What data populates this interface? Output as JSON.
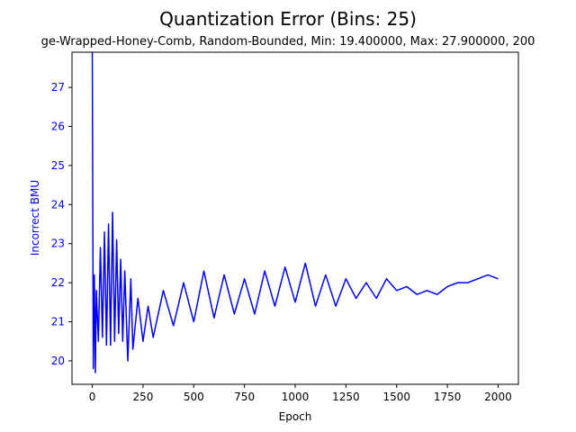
{
  "chart_data": {
    "type": "line",
    "title": "Quantization Error (Bins: 25)",
    "subtitle": "ge-Wrapped-Honey-Comb, Random-Bounded, Min: 19.400000, Max: 27.900000, 200",
    "xlabel": "Epoch",
    "ylabel": "Incorrect BMU",
    "xlim": [
      -100,
      2100
    ],
    "ylim": [
      19.4,
      27.9
    ],
    "xticks": [
      0,
      250,
      500,
      750,
      1000,
      1250,
      1500,
      1750,
      2000
    ],
    "yticks": [
      20,
      21,
      22,
      23,
      24,
      25,
      26,
      27
    ],
    "grid": false,
    "legend": "none",
    "series_color": "#0000ff",
    "ylabel_color": "#0000ff",
    "series": [
      {
        "x": [
          0,
          5,
          10,
          15,
          20,
          30,
          40,
          50,
          60,
          70,
          80,
          90,
          100,
          110,
          120,
          130,
          140,
          150,
          160,
          175,
          190,
          200,
          225,
          250,
          275,
          300,
          350,
          400,
          450,
          500,
          550,
          600,
          650,
          700,
          750,
          800,
          850,
          900,
          950,
          1000,
          1050,
          1100,
          1150,
          1200,
          1250,
          1300,
          1350,
          1400,
          1450,
          1500,
          1550,
          1600,
          1650,
          1700,
          1750,
          1800,
          1850,
          1900,
          1950,
          2000
        ],
        "y": [
          27.9,
          19.8,
          22.2,
          19.7,
          21.8,
          20.5,
          22.9,
          20.6,
          23.3,
          20.4,
          23.5,
          20.4,
          23.8,
          20.5,
          23.1,
          20.7,
          22.6,
          20.5,
          22.3,
          20.0,
          22.1,
          20.3,
          21.6,
          20.5,
          21.4,
          20.6,
          21.8,
          20.9,
          22.0,
          21.0,
          22.3,
          21.1,
          22.2,
          21.2,
          22.1,
          21.2,
          22.3,
          21.4,
          22.4,
          21.5,
          22.5,
          21.4,
          22.2,
          21.4,
          22.1,
          21.6,
          22.0,
          21.6,
          22.1,
          21.8,
          21.9,
          21.7,
          21.8,
          21.7,
          21.9,
          22.0,
          22.0,
          22.1,
          22.2,
          22.1
        ]
      }
    ]
  }
}
